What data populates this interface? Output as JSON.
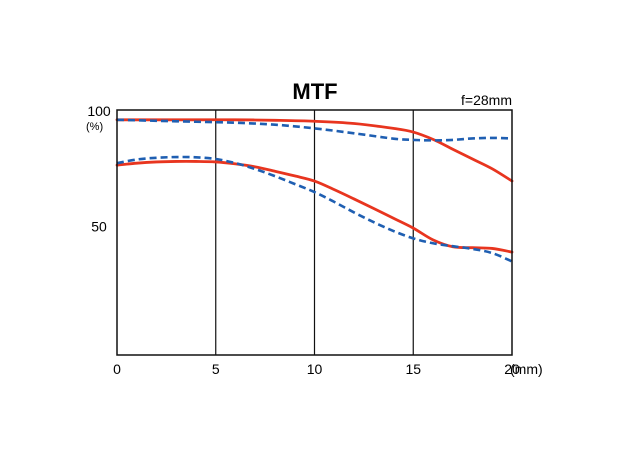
{
  "chart_data": {
    "type": "line",
    "title": "MTF",
    "annotation": "f=28mm",
    "ylabel": "(%)",
    "x_unit_label": "(mm)",
    "xlim": [
      0,
      20
    ],
    "ylim": [
      0,
      100
    ],
    "x_ticks": [
      0,
      5,
      10,
      15,
      20
    ],
    "y_ticks": [
      50,
      100
    ],
    "grid": {
      "vertical_lines_at": [
        5,
        10,
        15
      ],
      "horizontal": false
    },
    "colors": {
      "solid": "#e8351f",
      "dashed": "#1f5fb2",
      "axis": "#111111"
    },
    "series": [
      {
        "style": "solid",
        "color": "#e8351f",
        "x": [
          0,
          2,
          4,
          6,
          8,
          10,
          12,
          14,
          15,
          16,
          17,
          18,
          19,
          20
        ],
        "y": [
          96,
          96,
          96,
          96,
          95.8,
          95.4,
          94.5,
          92.5,
          91,
          88,
          84,
          80,
          76,
          71
        ]
      },
      {
        "style": "dashed",
        "color": "#1f5fb2",
        "x": [
          0,
          2,
          4,
          6,
          8,
          10,
          12,
          14,
          15,
          16,
          17,
          18,
          19,
          20
        ],
        "y": [
          96,
          95.6,
          95.2,
          94.8,
          94,
          92.5,
          90.5,
          88.3,
          87.8,
          87.6,
          87.8,
          88.4,
          88.6,
          88.4
        ]
      },
      {
        "style": "solid",
        "color": "#e8351f",
        "x": [
          0,
          1,
          2,
          3,
          4,
          5,
          6,
          7,
          8,
          9,
          10,
          11,
          12,
          13,
          14,
          15,
          16,
          17,
          18,
          19,
          20
        ],
        "y": [
          77.5,
          78.3,
          78.8,
          79,
          79,
          78.8,
          78,
          76.8,
          75,
          73.1,
          71,
          67.5,
          63.7,
          59.8,
          55.8,
          51.8,
          47,
          44.2,
          43.8,
          43.5,
          42
        ]
      },
      {
        "style": "dashed",
        "color": "#1f5fb2",
        "x": [
          0,
          1,
          2,
          3,
          4,
          5,
          6,
          7,
          8,
          9,
          10,
          11,
          12,
          13,
          14,
          15,
          16,
          17,
          18,
          19,
          20
        ],
        "y": [
          78.3,
          79.8,
          80.5,
          80.8,
          80.7,
          80,
          78.3,
          75.9,
          73,
          69.8,
          66.5,
          62.5,
          58.2,
          54.2,
          50.6,
          47.6,
          45.6,
          44.4,
          43.3,
          41.6,
          38.2
        ]
      }
    ]
  }
}
